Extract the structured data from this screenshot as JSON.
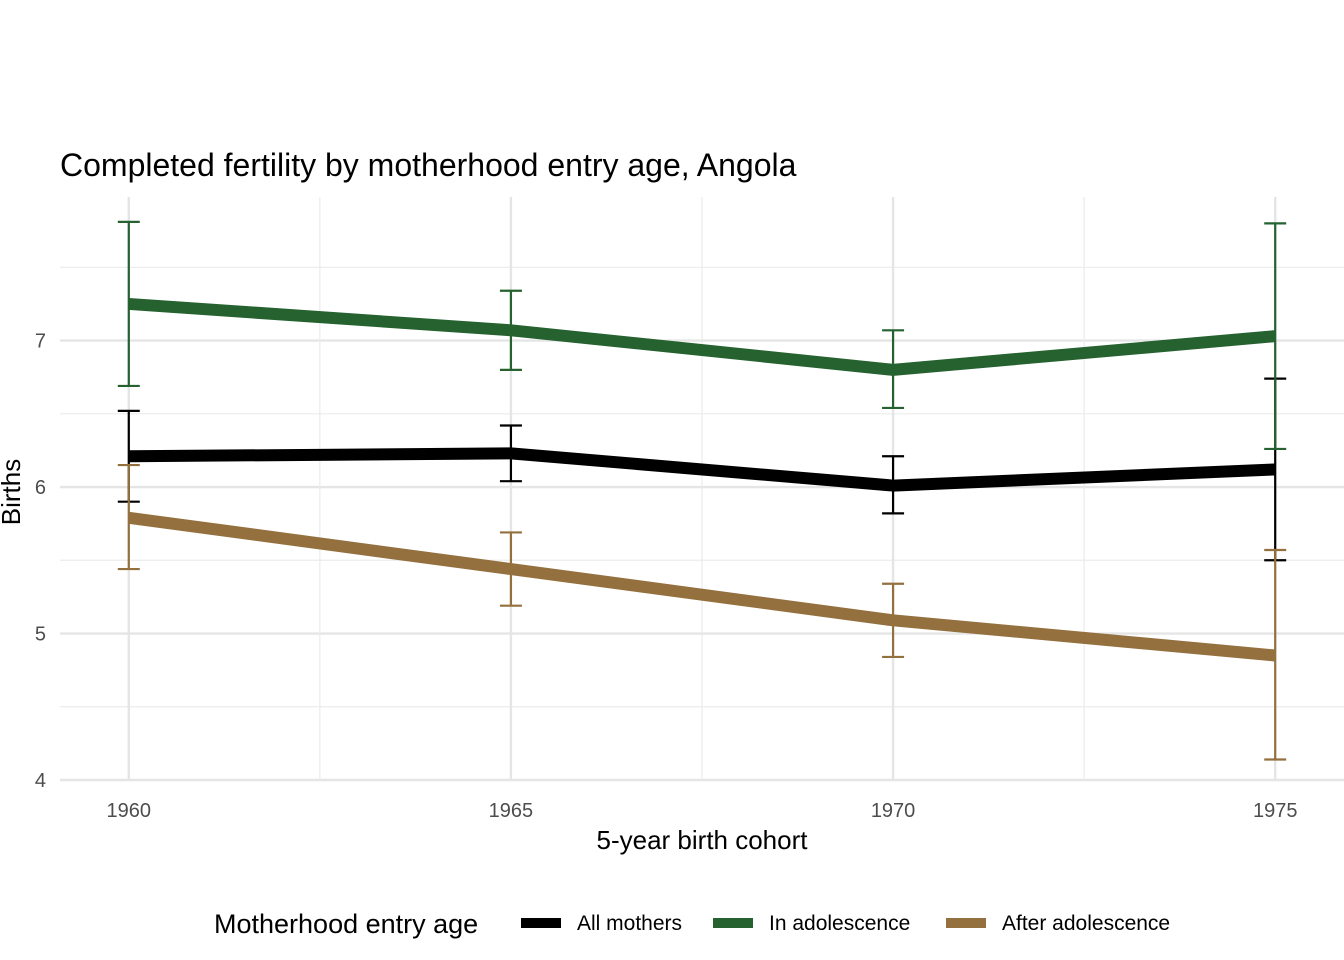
{
  "chart_data": {
    "type": "line",
    "title": "Completed fertility by motherhood entry age,  Angola",
    "xlabel": "5-year birth cohort",
    "ylabel": "Births",
    "x": [
      1960,
      1965,
      1970,
      1975
    ],
    "x_ticks": [
      "1960",
      "1965",
      "1970",
      "1975"
    ],
    "y_ticks": [
      "4",
      "5",
      "6",
      "7"
    ],
    "xlim": [
      1959.1,
      1975.9
    ],
    "ylim": [
      4.0,
      7.98
    ],
    "grid": true,
    "legend": {
      "title": "Motherhood entry age",
      "position": "bottom"
    },
    "series": [
      {
        "name": "All mothers",
        "color": "#000000",
        "values": [
          6.21,
          6.23,
          6.01,
          6.12
        ],
        "lower": [
          5.9,
          6.04,
          5.82,
          5.5
        ],
        "upper": [
          6.52,
          6.42,
          6.21,
          6.74
        ]
      },
      {
        "name": "In adolescence",
        "color": "#25622f",
        "values": [
          7.25,
          7.07,
          6.8,
          7.03
        ],
        "lower": [
          6.69,
          6.8,
          6.54,
          6.26
        ],
        "upper": [
          7.81,
          7.34,
          7.07,
          7.8
        ]
      },
      {
        "name": "After adolescence",
        "color": "#94703f",
        "values": [
          5.79,
          5.44,
          5.09,
          4.85
        ],
        "lower": [
          5.44,
          5.19,
          4.84,
          4.14
        ],
        "upper": [
          6.15,
          5.69,
          5.34,
          5.57
        ]
      }
    ]
  }
}
